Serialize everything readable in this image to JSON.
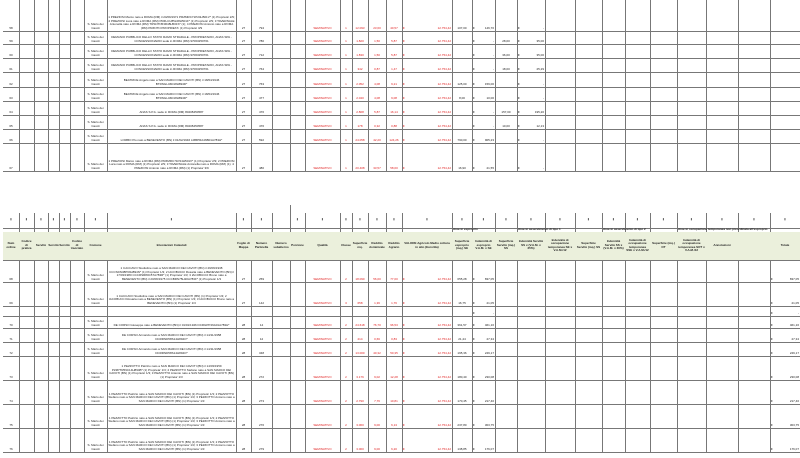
{
  "top_rows": [
    {
      "n": "58",
      "loc": "S. Mario dei Cavoli",
      "int": "1 PREZIOSI Marco nato a ROMA (RM) il 24/09/1971 PRZMRC71P24H501V* (1) Proprieta' 2/9; 2 PREZIOSI Luca nato a ROMA (RM) PRZLCU85L08H501F* (1) Proprieta' 2/9; 3 TAVERNALE Antonella nato a ROMA (RM) TRSNTN53R48H501S* (1); 4 PREZIOSI Antonio nato a ROMA (RM) PRZNTN PROPRIETA' (1) Proprieta' 3/9",
      "fg": "27",
      "part": "794",
      "q": "SEMINATIVO",
      "cl": "1",
      "sup": "12.093",
      "rd": "23,60",
      "ra": "40,57",
      "vam": "12.754,42",
      "se": "107,00",
      "ie": "146,70",
      "ss": "",
      "is": "-"
    },
    {
      "n": "59",
      "loc": "S. Mario dei Cavoli",
      "int": "DEMANIO PUBBLICO DELLO STATO RAMO STRADALE - PROPRIETARIO, ANAS SPA - CONCESSIONARIO sede in ROMA (RM) 97063250761",
      "fg": "27",
      "part": "780",
      "q": "SEMINATIVO",
      "cl": "1",
      "sup": "1.820",
      "rd": "1,50",
      "ra": "5,87",
      "vam": "12.754,42",
      "se": "",
      "ie": "-",
      "ss": "28,00",
      "is": "35,00"
    },
    {
      "n": "60",
      "loc": "S. Mario dei Cavoli",
      "int": "DEMANIO PUBBLICO DELLO STATO RAMO STRADALE - PROPRIETARIO, ANAS SPA - CONCESSIONARIO sede in ROMA (RM) 97063250761",
      "fg": "27",
      "part": "712",
      "q": "SEMINATIVO",
      "cl": "1",
      "sup": "1.830",
      "rd": "1,50",
      "ra": "5,87",
      "vam": "12.754,42",
      "se": "",
      "ie": "-",
      "ss": "36,00",
      "is": "35,00"
    },
    {
      "n": "61",
      "loc": "S. Mario dei Cavoli",
      "int": "DEMANIO PUBBLICO DELLO STATO RAMO STRADALE - PROPRIETARIO, ANAS SPA - CONCESSIONARIO sede in ROMA (RM) 97063250761",
      "fg": "27",
      "part": "764",
      "q": "SEMINATIVO",
      "cl": "1",
      "sup": "342",
      "rd": "0,87",
      "ra": "1,47",
      "vam": "12.754,42",
      "se": "",
      "ie": "-",
      "ss": "18,00",
      "is": "25,29"
    },
    {
      "n": "62",
      "loc": "S. Mario dei Cavoli",
      "int": "BEATRICE Angelo nato a SAN MARCO DEI CAVOTI (BN) il 18/04/1946 BTRNGL46D18H894D*",
      "fg": "27",
      "part": "763",
      "q": "SEMINATIVO",
      "cl": "1",
      "sup": "2.052",
      "rd": "4,08",
      "ra": "9,21",
      "vam": "12.754,42",
      "se": "125,00",
      "ie": "159,00",
      "ss": "",
      "is": "-"
    },
    {
      "n": "63",
      "loc": "S. Mario dei Cavoli",
      "int": "BEATRICE Angelo nato a SAN MARCO DEI CAVOTI (BN) il 18/04/1946 BTRNGL46D18H894D*",
      "fg": "27",
      "part": "477",
      "q": "SEMINATIVO",
      "cl": "1",
      "sup": "2.040",
      "rd": "4,08",
      "ra": "9,08",
      "vam": "12.754,42",
      "se": "8,00",
      "ie": "10,00",
      "ss": "",
      "is": "-"
    },
    {
      "n": "64",
      "loc": "S. Mario dei Cavoli",
      "int": "ANAS S.P.A. sede in ROMA (RM) 80208450587",
      "fg": "27",
      "part": "476",
      "q": "SEMINATIVO",
      "cl": "1",
      "sup": "2.808",
      "rd": "5,87",
      "ra": "16,14",
      "vam": "12.754,42",
      "se": "",
      "ie": "-",
      "ss": "157,00",
      "is": "195,20"
    },
    {
      "n": "65",
      "loc": "S. Mario dei Cavoli",
      "int": "ANAS S.P.A. sede in ROMA (RM) 80208450587",
      "fg": "27",
      "part": "476",
      "q": "SEMINATIVO",
      "cl": "1",
      "sup": "178",
      "rd": "0,32",
      "ra": "0,88",
      "vam": "12.754,42",
      "se": "",
      "ie": "-",
      "ss": "10,00",
      "is": "12,13"
    },
    {
      "n": "66",
      "loc": "S. Mario dei Cavoli",
      "int": "LOMBO Pio nato a BENEVENTO (BN) il 01/02/1946 LMBPRA46B01A783H*",
      "fg": "27",
      "part": "592",
      "q": "SEMINATIVO",
      "cl": "1",
      "sup": "24.058",
      "rd": "42,20",
      "ra": "124,26",
      "vam": "12.754,42",
      "se": "790,00",
      "ie": "905,23",
      "ss": "",
      "is": "-"
    },
    {
      "n": "67",
      "loc": "S. Mario dei Cavoli",
      "int": "1 PREZIOSI Marco nato a ROMA (RM) PRZMRC71P24H501V* (1) Proprieta' 2/9; 2 PREZIOSI Luca nato a ROMA (RM) (1) Proprieta' 2/9; 3 TAVERNALE Antonella nato a ROMA (RM) (1); 4 PREZIOSI Antonio nato a ROMA (RM) (1) Proprieta' 3/9",
      "fg": "27",
      "part": "480",
      "q": "SEMINATIVO",
      "cl": "1",
      "sup": "20.408",
      "rd": "33,57",
      "ra": "58,00",
      "vam": "12.754,42",
      "se": "16,90",
      "ie": "21,55",
      "ss": "",
      "is": "-"
    }
  ],
  "header": {
    "groups": {
      "esproprio": "Aree in esproprio",
      "servitu1": "Aree in asservimento di tipo 1",
      "servitu2": "Aree in asservimento di tipo 2",
      "occupazione": "Aree in occupazione temporanea non preordinata all'esproprio"
    },
    "columns": [
      "Num ordine",
      "Codice di pratica",
      "Servitù",
      "Servitù",
      "Servitù",
      "Codice di tracciato",
      "Comune",
      "Intestazioni Catastali",
      "Foglio di Mappa",
      "Numero Particella",
      "Numero subalterno",
      "Porzione",
      "Qualità",
      "Classe",
      "Superficie mq.",
      "Reddito dominicale",
      "Reddito Agrario",
      "VALORE Agricolo Medio coltura in atto (Euro/Ha)",
      "Superficie esproprio (mq.) SE",
      "Indennità di esproprio V.A.M. x SE",
      "Superficie Servitù (mq.) SS",
      "Indennità Servitù SS x (V.A.M. x 25%)",
      "Indennità di occupazione temporanea SE x V.A.M./12",
      "Superficie Servitù (mq.) SS",
      "Indennità Servitù SS x (V.A.M. x 30%)",
      "Indennità di occupazione temporanea SSE x V.A.M./12",
      "Superficie (mq.) OT",
      "Indennità di occupazione temporanea SOT x V.A.M./12",
      "Annotazioni",
      "",
      "Totale"
    ]
  },
  "bottom_rows": [
    {
      "n": "68",
      "loc": "S. Mario dei Cavoli",
      "int": "1 CACCAVO Studioline nato a SAN MARCO DEI CAVOTI (BN) il 29/09/1938 CCCSDN38P69H894N* (1) Proprieta' 1/3; 2 IACOBUCCI Rosaria nato a BENEVENTO (BN) il 17/03/1980 CCCRSR80C57A783R* (1) Proprieta' 1/3; 3 IACOBUCCI Bruno nato a BENEVENTO (BN) il 20/06/1975 CCCBRN75H20A783F* (1) Proprieta' 1/3",
      "fg": "27",
      "part": "259",
      "q": "SEMINATIVO",
      "cl": "2",
      "sup": "18.090",
      "rd": "56,00",
      "ra": "77,00",
      "vam": "12.754,42",
      "se": "655,28",
      "ie": "837,05",
      "tot": "837,05"
    },
    {
      "n": "69",
      "loc": "S. Mario dei Cavoli",
      "int": "1 CACCAVO Studioline nato a SAN MARCO DEI CAVOTI (BN) (1) Proprieta' 1/3; 2 IACOBUCCI Rosaria nato a BENEVENTO (BN) (1) Proprieta' 1/3; 3 IACOBUCCI Bruno nato a BENEVENTO (BN) (1) Proprieta' 1/3",
      "fg": "27",
      "part": "142",
      "q": "SEMINATIVO",
      "cl": "3",
      "sup": "658",
      "rd": "1,36",
      "ra": "1,76",
      "vam": "12.754,42",
      "se": "16,75",
      "ie": "21,05",
      "tot": "21,05"
    },
    {
      "n": "",
      "loc": "",
      "int": "",
      "fg": "",
      "part": "",
      "q": "",
      "cl": "",
      "sup": "",
      "rd": "",
      "ra": "",
      "vam": "",
      "se": "",
      "ie": "-",
      "tot": "-"
    },
    {
      "n": "70",
      "loc": "S. Mario dei Cavoli",
      "int": "DE CORSO Giuseppe nato a BENEVENTO (BN) il 01/01/1946 DCRGPP46A01A783H*",
      "fg": "28",
      "part": "14",
      "q": "SEMINATIVO",
      "cl": "2",
      "sup": "24.618",
      "rd": "76,70",
      "ra": "96,53",
      "vam": "12.754,42",
      "se": "361,57",
      "ie": "461,16",
      "tot": "461,16"
    },
    {
      "n": "71",
      "loc": "S. Mario dei Cavoli",
      "int": "DE CORSO Armando nato a SAN MARCO DEI CAVOTI (BN) il 14/11/1958 DCRRND58S14H894O*",
      "fg": "28",
      "part": "12",
      "q": "SEMINATIVO",
      "cl": "2",
      "sup": "214",
      "rd": "0,66",
      "ra": "0,83",
      "vam": "12.754,42",
      "se": "21,44",
      "ie": "27,34",
      "tot": "27,34"
    },
    {
      "n": "72",
      "loc": "S. Mario dei Cavoli",
      "int": "DE CORSO Armando nato a SAN MARCO DEI CAVOTI (BN) il 14/11/1958 DCRRND58S14H894O*",
      "fg": "28",
      "part": "348",
      "q": "SEMINATIVO",
      "cl": "2",
      "sup": "13.000",
      "rd": "40,32",
      "ra": "50,35",
      "vam": "12.754,42",
      "se": "195,36",
      "ie": "249,17",
      "tot": "249,17"
    },
    {
      "n": "73",
      "loc": "S. Mario dei Cavoli",
      "int": "1 PEZZOTTO Patrizio nato a SAN MARCO DEI CAVOTI (BN) il 14/03/1959 PZZPTR59C14H894B* (1) Proprieta' 1/3; 2 PEZZOTTO Stefano nato a SAN MARCO DEI CAVOTI (BN) (1) Proprieta' 1/3; 3 PEZZOTTO Antonio nato a SAN MARCO DEI CAVOTI (BN) (1) Proprieta' 1/3",
      "fg": "28",
      "part": "272",
      "q": "SEMINATIVO",
      "cl": "2",
      "sup": "3.176",
      "rd": "9,02",
      "ra": "12,28",
      "vam": "12.754,42",
      "se": "180,40",
      "ie": "230,08",
      "tot": "230,08"
    },
    {
      "n": "74",
      "loc": "S. Mario dei Cavoli",
      "int": "1 PEZZOTTO Patrizio nato a SAN MARCO DEI CAVOTI (BN) (1) Proprieta' 1/3; 2 PEZZOTTO Stefano nato a SAN MARCO DEI CAVOTI (BN) (1) Proprieta' 1/3; 3 PEZZOTTO Antonio nato a SAN MARCO DEI CAVOTI (BN) (1) Proprieta' 1/3",
      "fg": "28",
      "part": "273",
      "q": "SEMINATIVO",
      "cl": "2",
      "sup": "2.790",
      "rd": "7,76",
      "ra": "10,81",
      "vam": "12.754,42",
      "se": "170,45",
      "ie": "217,40",
      "tot": "217,40"
    },
    {
      "n": "75",
      "loc": "S. Mario dei Cavoli",
      "int": "1 PEZZOTTO Patrizio nato a SAN MARCO DEI CAVOTI (BN) (1) Proprieta' 1/3; 2 PEZZOTTO Stefano nato a SAN MARCO DEI CAVOTI (BN) (1) Proprieta' 1/3; 3 PEZZOTTO Antonio nato a SAN MARCO DEI CAVOTI (BN) (1) Proprieta' 1/3",
      "fg": "28",
      "part": "276",
      "q": "SEMINATIVO",
      "cl": "2",
      "sup": "3.060",
      "rd": "9,00",
      "ra": "6,13",
      "vam": "12.754,42",
      "se": "237,80",
      "ie": "303,75",
      "tot": "303,75"
    },
    {
      "n": "76",
      "loc": "S. Mario dei Cavoli",
      "int": "1 PEZZOTTO Patrizio nato a SAN MARCO DEI CAVOTI (BN) (1) Proprieta' 1/3; 2 PEZZOTTO Stefano nato a SAN MARCO DEI CAVOTI (BN) (1) Proprieta' 1/3; 3 PEZZOTTO Antonio nato a SAN MARCO DEI CAVOTI (BN) (1) Proprieta' 1/3",
      "fg": "28",
      "part": "279",
      "q": "SEMINATIVO",
      "cl": "2",
      "sup": "3.000",
      "rd": "9,00",
      "ra": "6,20",
      "vam": "12.754,42",
      "se": "138,85",
      "ie": "176,07",
      "tot": "176,07"
    }
  ],
  "currency": "€",
  "colors": {
    "red": "#e02020",
    "header_bg": "#ebf0dc",
    "grid": "#777777"
  }
}
